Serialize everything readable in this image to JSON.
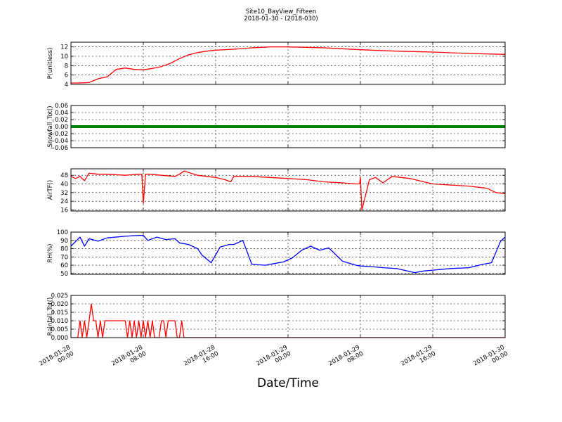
{
  "figure": {
    "title": "Site10_BayView_Fifteen",
    "subtitle": "2018-01-30 - (2018-030)",
    "xlabel": "Date/Time"
  },
  "chart_data": [
    {
      "type": "line",
      "ylabel": "P(unitless)",
      "ylim": [
        4,
        13
      ],
      "yticks": [
        "4",
        "6",
        "8",
        "10",
        "12"
      ],
      "grid": true,
      "series": [
        {
          "color": "#ff0000",
          "x": [
            "2018-01-28 00:00",
            "2018-01-28 01:00",
            "2018-01-28 02:00",
            "2018-01-28 03:00",
            "2018-01-28 04:00",
            "2018-01-28 05:00",
            "2018-01-28 06:00",
            "2018-01-28 07:00",
            "2018-01-28 08:00",
            "2018-01-28 09:00",
            "2018-01-28 10:00",
            "2018-01-28 11:00",
            "2018-01-28 12:00",
            "2018-01-28 13:00",
            "2018-01-28 14:00",
            "2018-01-28 15:00",
            "2018-01-28 16:00",
            "2018-01-28 18:00",
            "2018-01-28 20:00",
            "2018-01-28 22:00",
            "2018-01-29 00:00",
            "2018-01-29 02:00",
            "2018-01-29 04:00",
            "2018-01-29 06:00",
            "2018-01-29 08:00",
            "2018-01-29 12:00",
            "2018-01-29 16:00",
            "2018-01-29 20:00",
            "2018-01-30 00:00"
          ],
          "y": [
            4.3,
            4.3,
            4.4,
            5.2,
            5.6,
            7.2,
            7.5,
            7.2,
            7.1,
            7.4,
            7.8,
            8.5,
            9.5,
            10.3,
            10.8,
            11.1,
            11.3,
            11.5,
            11.8,
            12.0,
            12.0,
            11.9,
            11.8,
            11.6,
            11.4,
            11.1,
            10.9,
            10.6,
            10.4
          ]
        }
      ]
    },
    {
      "type": "line",
      "ylabel": "Snowfall_Tot()",
      "ylim": [
        -0.06,
        0.06
      ],
      "yticks": [
        "−0.06",
        "−0.04",
        "−0.02",
        "0.00",
        "0.02",
        "0.04",
        "0.06"
      ],
      "grid": true,
      "series": [
        {
          "color": "#008000",
          "x": [
            "2018-01-28 00:00",
            "2018-01-30 00:00"
          ],
          "y": [
            0.0,
            0.0
          ]
        }
      ]
    },
    {
      "type": "line",
      "ylabel": "AirTF()",
      "ylim": [
        15,
        54
      ],
      "yticks": [
        "16",
        "24",
        "32",
        "40",
        "48"
      ],
      "grid": true,
      "series": [
        {
          "color": "#ff0000",
          "x": [
            "2018-01-28 00:00",
            "2018-01-28 00:30",
            "2018-01-28 01:00",
            "2018-01-28 01:30",
            "2018-01-28 02:00",
            "2018-01-28 03:00",
            "2018-01-28 04:00",
            "2018-01-28 06:00",
            "2018-01-28 07:30",
            "2018-01-28 07:50",
            "2018-01-28 08:00",
            "2018-01-28 08:15",
            "2018-01-28 08:40",
            "2018-01-28 10:00",
            "2018-01-28 11:30",
            "2018-01-28 12:00",
            "2018-01-28 12:30",
            "2018-01-28 14:00",
            "2018-01-28 15:00",
            "2018-01-28 16:00",
            "2018-01-28 17:00",
            "2018-01-28 17:40",
            "2018-01-28 18:00",
            "2018-01-28 20:00",
            "2018-01-28 22:00",
            "2018-01-29 00:00",
            "2018-01-29 02:00",
            "2018-01-29 04:00",
            "2018-01-29 06:00",
            "2018-01-29 07:30",
            "2018-01-29 07:55",
            "2018-01-29 08:00",
            "2018-01-29 08:10",
            "2018-01-29 09:00",
            "2018-01-29 09:40",
            "2018-01-29 10:30",
            "2018-01-29 11:30",
            "2018-01-29 12:30",
            "2018-01-29 13:30",
            "2018-01-29 14:00",
            "2018-01-29 16:00",
            "2018-01-29 18:00",
            "2018-01-29 20:00",
            "2018-01-29 22:00",
            "2018-01-29 23:00",
            "2018-01-30 00:00"
          ],
          "y": [
            47,
            45,
            47,
            43,
            50,
            49,
            49,
            48,
            49,
            49,
            22,
            49,
            49,
            48,
            47,
            49,
            52,
            48,
            47,
            46,
            44,
            42,
            47,
            47,
            46,
            45,
            44,
            42,
            41,
            40,
            40,
            46,
            16,
            44,
            46,
            41,
            47,
            46,
            45,
            44,
            40,
            39,
            38,
            36,
            32,
            31
          ]
        }
      ]
    },
    {
      "type": "line",
      "ylabel": "RH(%)",
      "ylim": [
        49,
        100
      ],
      "yticks": [
        "50",
        "60",
        "70",
        "80",
        "90",
        "100"
      ],
      "grid": true,
      "series": [
        {
          "color": "#0000ff",
          "x": [
            "2018-01-28 00:00",
            "2018-01-28 01:00",
            "2018-01-28 01:30",
            "2018-01-28 02:00",
            "2018-01-28 03:00",
            "2018-01-28 04:00",
            "2018-01-28 06:00",
            "2018-01-28 07:30",
            "2018-01-28 08:00",
            "2018-01-28 08:30",
            "2018-01-28 09:30",
            "2018-01-28 10:30",
            "2018-01-28 11:30",
            "2018-01-28 12:00",
            "2018-01-28 13:00",
            "2018-01-28 14:00",
            "2018-01-28 14:30",
            "2018-01-28 15:30",
            "2018-01-28 16:30",
            "2018-01-28 17:30",
            "2018-01-28 18:00",
            "2018-01-28 19:00",
            "2018-01-28 20:00",
            "2018-01-28 21:30",
            "2018-01-28 22:30",
            "2018-01-28 23:30",
            "2018-01-29 00:30",
            "2018-01-29 01:30",
            "2018-01-29 02:30",
            "2018-01-29 03:30",
            "2018-01-29 04:30",
            "2018-01-29 06:00",
            "2018-01-29 07:30",
            "2018-01-29 08:00",
            "2018-01-29 09:30",
            "2018-01-29 10:30",
            "2018-01-29 12:00",
            "2018-01-29 14:00",
            "2018-01-29 15:00",
            "2018-01-29 16:00",
            "2018-01-29 18:00",
            "2018-01-29 20:00",
            "2018-01-29 21:30",
            "2018-01-29 22:30",
            "2018-01-29 23:30",
            "2018-01-30 00:00"
          ],
          "y": [
            83,
            94,
            83,
            92,
            89,
            93,
            95,
            96,
            96,
            90,
            94,
            91,
            92,
            87,
            85,
            80,
            72,
            63,
            82,
            85,
            85,
            90,
            61,
            60,
            62,
            64,
            69,
            78,
            83,
            78,
            81,
            65,
            60,
            59,
            58,
            57,
            56,
            51,
            53,
            54,
            56,
            57,
            61,
            63,
            89,
            94
          ]
        }
      ]
    },
    {
      "type": "line",
      "ylabel": "Rainfall_Tot()",
      "ylim": [
        0,
        0.025
      ],
      "yticks": [
        "0.000",
        "0.005",
        "0.010",
        "0.015",
        "0.020",
        "0.025"
      ],
      "grid": true,
      "series": [
        {
          "color": "#ff0000",
          "x": [
            "2018-01-28 00:00",
            "2018-01-28 00:45",
            "2018-01-28 01:00",
            "2018-01-28 01:15",
            "2018-01-28 01:30",
            "2018-01-28 01:45",
            "2018-01-28 02:00",
            "2018-01-28 02:15",
            "2018-01-28 02:30",
            "2018-01-28 02:45",
            "2018-01-28 03:00",
            "2018-01-28 03:15",
            "2018-01-28 03:30",
            "2018-01-28 03:45",
            "2018-01-28 04:00",
            "2018-01-28 04:15",
            "2018-01-28 04:30",
            "2018-01-28 04:45",
            "2018-01-28 05:00",
            "2018-01-28 05:30",
            "2018-01-28 06:00",
            "2018-01-28 06:15",
            "2018-01-28 06:30",
            "2018-01-28 06:45",
            "2018-01-28 07:00",
            "2018-01-28 07:15",
            "2018-01-28 07:30",
            "2018-01-28 07:45",
            "2018-01-28 08:00",
            "2018-01-28 08:15",
            "2018-01-28 08:30",
            "2018-01-28 08:45",
            "2018-01-28 09:00",
            "2018-01-28 09:15",
            "2018-01-28 09:30",
            "2018-01-28 09:45",
            "2018-01-28 10:00",
            "2018-01-28 10:15",
            "2018-01-28 10:30",
            "2018-01-28 10:45",
            "2018-01-28 11:00",
            "2018-01-28 11:30",
            "2018-01-28 11:45",
            "2018-01-28 12:00",
            "2018-01-28 12:15",
            "2018-01-28 12:30",
            "2018-01-28 12:45",
            "2018-01-28 13:00",
            "2018-01-30 00:00"
          ],
          "y": [
            0,
            0,
            0.01,
            0,
            0.01,
            0,
            0.01,
            0.02,
            0.01,
            0.01,
            0,
            0.01,
            0,
            0.01,
            0.01,
            0.01,
            0.01,
            0.01,
            0.01,
            0.01,
            0.01,
            0,
            0.01,
            0,
            0.01,
            0,
            0.01,
            0,
            0.01,
            0,
            0.01,
            0,
            0.01,
            0,
            0,
            0,
            0.01,
            0.01,
            0,
            0.01,
            0.01,
            0.01,
            0,
            0,
            0.01,
            0,
            0,
            0,
            0
          ]
        }
      ]
    }
  ],
  "xaxis": {
    "range": [
      "2018-01-28 00:00",
      "2018-01-30 00:00"
    ],
    "ticks": [
      {
        "date": "2018-01-28",
        "time": "00:00",
        "at": "2018-01-28 00:00"
      },
      {
        "date": "2018-01-28",
        "time": "08:00",
        "at": "2018-01-28 08:00"
      },
      {
        "date": "2018-01-28",
        "time": "16:00",
        "at": "2018-01-28 16:00"
      },
      {
        "date": "2018-01-29",
        "time": "00:00",
        "at": "2018-01-29 00:00"
      },
      {
        "date": "2018-01-29",
        "time": "08:00",
        "at": "2018-01-29 08:00"
      },
      {
        "date": "2018-01-29",
        "time": "16:00",
        "at": "2018-01-29 16:00"
      },
      {
        "date": "2018-01-30",
        "time": "00:00",
        "at": "2018-01-30 00:00"
      }
    ]
  }
}
